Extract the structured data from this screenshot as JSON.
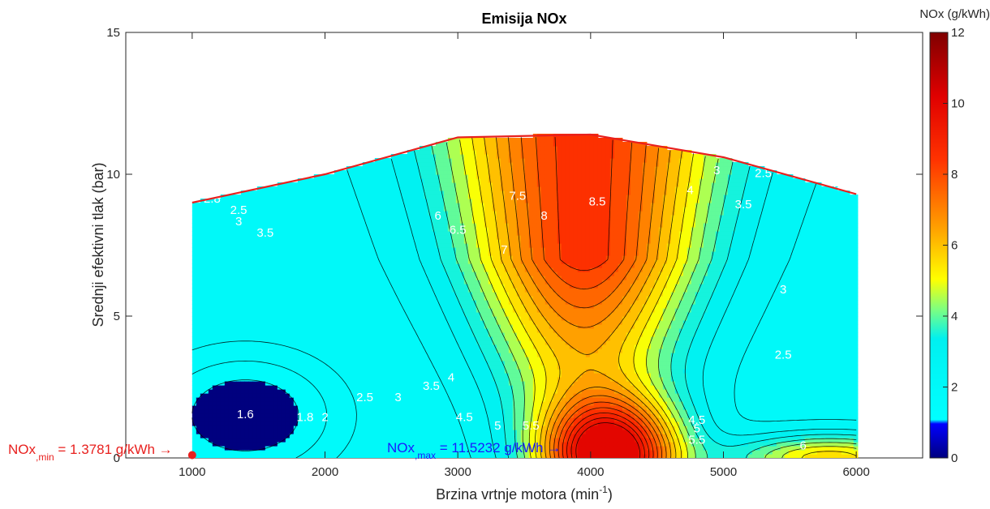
{
  "chart_data": {
    "type": "contour",
    "title": "Emisija NOx",
    "xlabel": "Brzina vrtnje motora (min",
    "xlabel_sup": "-1",
    "xlabel_end": ")",
    "ylabel": "Srednji efektivni tlak (bar)",
    "xlim": [
      500,
      6500
    ],
    "ylim": [
      0,
      15
    ],
    "xticks": [
      "1000",
      "2000",
      "3000",
      "4000",
      "5000",
      "6000"
    ],
    "yticks": [
      "0",
      "5",
      "10",
      "15"
    ],
    "colorbar": {
      "label": "NOx (g/kWh)",
      "range": [
        0,
        12
      ],
      "ticks": [
        "0",
        "2",
        "4",
        "6",
        "8",
        "10",
        "12"
      ],
      "colormap": "jet"
    },
    "max_load_curve": {
      "color": "#e8201e",
      "x": [
        1000,
        2000,
        3000,
        4000,
        5000,
        6000
      ],
      "y": [
        9.0,
        10.0,
        11.3,
        11.4,
        10.6,
        9.3
      ]
    },
    "contour_levels": [
      1.6,
      1.8,
      2,
      2.5,
      3,
      3.5,
      4,
      4.5,
      5,
      5.5,
      6,
      6.5,
      7,
      7.5,
      8,
      8.5,
      9,
      9.5,
      10
    ],
    "contour_labels": [
      {
        "text": "1.6",
        "x": 1400,
        "y": 1.4
      },
      {
        "text": "1.8",
        "x": 1850,
        "y": 1.3
      },
      {
        "text": "2",
        "x": 2000,
        "y": 1.3
      },
      {
        "text": "2.5",
        "x": 2300,
        "y": 2.0
      },
      {
        "text": "3",
        "x": 2550,
        "y": 2.0
      },
      {
        "text": "3.5",
        "x": 2800,
        "y": 2.4
      },
      {
        "text": "4",
        "x": 2950,
        "y": 2.7
      },
      {
        "text": "4.5",
        "x": 3050,
        "y": 1.3
      },
      {
        "text": "5",
        "x": 3300,
        "y": 1.0
      },
      {
        "text": "5.5",
        "x": 3550,
        "y": 1.0
      },
      {
        "text": "6",
        "x": 2850,
        "y": 8.4
      },
      {
        "text": "6.5",
        "x": 3000,
        "y": 7.9
      },
      {
        "text": "7",
        "x": 3350,
        "y": 7.2
      },
      {
        "text": "7.5",
        "x": 3450,
        "y": 9.1
      },
      {
        "text": "8",
        "x": 3650,
        "y": 8.4
      },
      {
        "text": "8.5",
        "x": 4050,
        "y": 8.9
      },
      {
        "text": "2.8",
        "x": 1150,
        "y": 9.0
      },
      {
        "text": "2.5",
        "x": 1350,
        "y": 8.6
      },
      {
        "text": "3",
        "x": 1350,
        "y": 8.2
      },
      {
        "text": "3.5",
        "x": 1550,
        "y": 7.8
      },
      {
        "text": "3",
        "x": 4950,
        "y": 10.0
      },
      {
        "text": "2.5",
        "x": 5300,
        "y": 9.9
      },
      {
        "text": "2",
        "x": 5850,
        "y": 9.5
      },
      {
        "text": "4",
        "x": 4750,
        "y": 9.3
      },
      {
        "text": "3.5",
        "x": 5150,
        "y": 8.8
      },
      {
        "text": "3",
        "x": 5450,
        "y": 5.8
      },
      {
        "text": "2.5",
        "x": 5450,
        "y": 3.5
      },
      {
        "text": "4.5",
        "x": 4800,
        "y": 1.2
      },
      {
        "text": "5",
        "x": 4800,
        "y": 0.9
      },
      {
        "text": "5.5",
        "x": 4800,
        "y": 0.5
      },
      {
        "text": "6",
        "x": 5600,
        "y": 0.3
      }
    ],
    "annotations": {
      "min_label": "NOx",
      "min_sub": ",min",
      "min_value": " = 1.3781 g/kWh",
      "min_x": 1000,
      "min_y": 0.1,
      "min_color": "#e8201e",
      "max_label": "NOx",
      "max_sub": ",max",
      "max_value": " = 11.5232 g/kWh",
      "max_color": "#1a1aff"
    }
  }
}
